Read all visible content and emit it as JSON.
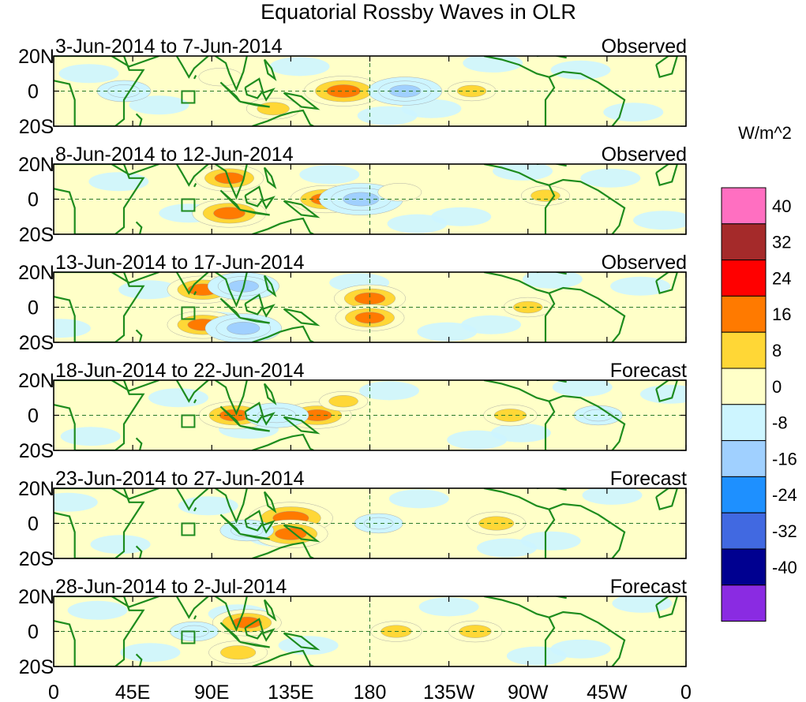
{
  "chart_data": {
    "type": "heatmap",
    "title": "Equatorial Rossby Waves in OLR",
    "units": "W/m^2",
    "variable": "OLR",
    "x_tick_labels": [
      "0",
      "45E",
      "90E",
      "135E",
      "180",
      "135W",
      "90W",
      "45W",
      "0"
    ],
    "y_tick_labels": [
      "20N",
      "0",
      "20S"
    ],
    "colorbar": {
      "levels": [
        "40",
        "32",
        "24",
        "16",
        "8",
        "0",
        "-8",
        "-16",
        "-24",
        "-32",
        "-40"
      ],
      "colors_top_to_bottom": [
        "#ff6fc1",
        "#a52a2a",
        "#ff0000",
        "#ff7a00",
        "#ffd736",
        "#ffffc8",
        "#cdf5ff",
        "#a0d0ff",
        "#1e90ff",
        "#4169e1",
        "#000090",
        "#8a2be2"
      ]
    },
    "panels": [
      {
        "date_range": "3-Jun-2014 to 7-Jun-2014",
        "status": "Observed",
        "anomalies": [
          {
            "lon": 165,
            "lat": 0,
            "value": 20
          },
          {
            "lon": 200,
            "lat": 0,
            "value": -18
          },
          {
            "lon": 95,
            "lat": 8,
            "value": 6
          },
          {
            "lon": 238,
            "lat": 0,
            "value": 8
          },
          {
            "lon": 125,
            "lat": -10,
            "value": 10
          },
          {
            "lon": 40,
            "lat": 0,
            "value": -10
          }
        ]
      },
      {
        "date_range": "8-Jun-2014 to 12-Jun-2014",
        "status": "Observed",
        "anomalies": [
          {
            "lon": 100,
            "lat": 12,
            "value": 16
          },
          {
            "lon": 100,
            "lat": -8,
            "value": 18
          },
          {
            "lon": 155,
            "lat": 0,
            "value": 17
          },
          {
            "lon": 175,
            "lat": 0,
            "value": -22
          },
          {
            "lon": 197,
            "lat": 4,
            "value": 6
          },
          {
            "lon": 280,
            "lat": 2,
            "value": 8
          }
        ]
      },
      {
        "date_range": "13-Jun-2014 to 17-Jun-2014",
        "status": "Observed",
        "anomalies": [
          {
            "lon": 85,
            "lat": 10,
            "value": 17
          },
          {
            "lon": 85,
            "lat": -10,
            "value": 17
          },
          {
            "lon": 108,
            "lat": 12,
            "value": -17
          },
          {
            "lon": 108,
            "lat": -12,
            "value": -19
          },
          {
            "lon": 180,
            "lat": 5,
            "value": 17
          },
          {
            "lon": 180,
            "lat": -6,
            "value": 16
          },
          {
            "lon": 270,
            "lat": 0,
            "value": 8
          }
        ]
      },
      {
        "date_range": "18-Jun-2014 to 22-Jun-2014",
        "status": "Forecast",
        "anomalies": [
          {
            "lon": 103,
            "lat": 0,
            "value": 17
          },
          {
            "lon": 150,
            "lat": 0,
            "value": 16
          },
          {
            "lon": 165,
            "lat": 8,
            "value": 8
          },
          {
            "lon": 127,
            "lat": 0,
            "value": -14
          },
          {
            "lon": 260,
            "lat": 0,
            "value": 10
          },
          {
            "lon": 310,
            "lat": 0,
            "value": -8
          }
        ]
      },
      {
        "date_range": "23-Jun-2014 to 27-Jun-2014",
        "status": "Forecast",
        "anomalies": [
          {
            "lon": 135,
            "lat": 3,
            "value": 22
          },
          {
            "lon": 135,
            "lat": -6,
            "value": 18
          },
          {
            "lon": 252,
            "lat": 0,
            "value": 12
          },
          {
            "lon": 110,
            "lat": -4,
            "value": -10
          },
          {
            "lon": 185,
            "lat": 0,
            "value": -8
          }
        ]
      },
      {
        "date_range": "28-Jun-2014 to 2-Jul-2014",
        "status": "Forecast",
        "anomalies": [
          {
            "lon": 110,
            "lat": 5,
            "value": 16
          },
          {
            "lon": 105,
            "lat": -12,
            "value": 12
          },
          {
            "lon": 195,
            "lat": 0,
            "value": 9
          },
          {
            "lon": 240,
            "lat": 0,
            "value": 10
          },
          {
            "lon": 80,
            "lat": 0,
            "value": -8
          }
        ]
      }
    ]
  }
}
